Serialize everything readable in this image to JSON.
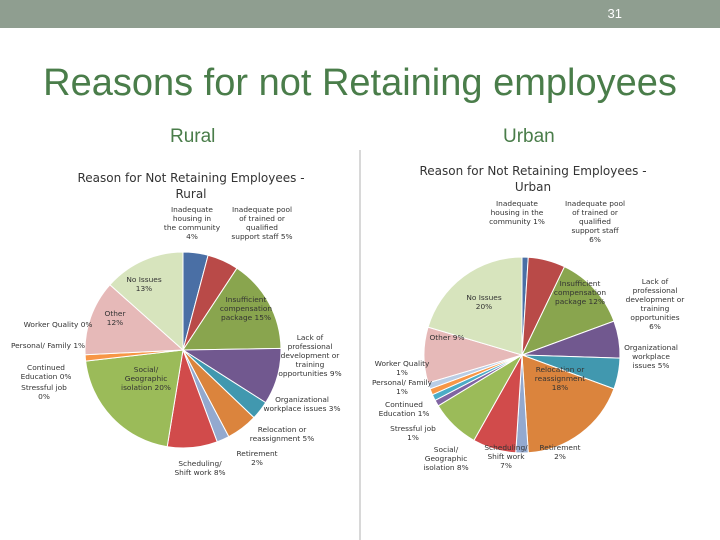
{
  "slide": {
    "page_number": "31",
    "title": "Reasons for not Retaining employees",
    "left_heading": "Rural",
    "right_heading": "Urban"
  },
  "colors": {
    "topbar": "#8f9e90",
    "title": "#4a7d4a"
  },
  "chart_data": [
    {
      "type": "pie",
      "title": "Reason for Not Retaining Employees - Rural",
      "slices": [
        {
          "label": "Inadequate housing in the community",
          "value": 4,
          "display": "Inadequate housing in the community 4%",
          "color": "#4a6fa5"
        },
        {
          "label": "Inadequate pool of trained or qualified support staff",
          "value": 5,
          "display": "Inadequate pool of trained or qualified support staff 5%",
          "color": "#b94a48"
        },
        {
          "label": "Insufficient compensation package",
          "value": 15,
          "display": "Insufficient compensation package 15%",
          "color": "#89a54e"
        },
        {
          "label": "Lack of professional development or training opportunities",
          "value": 9,
          "display": "Lack of professional development or training opportunities 9%",
          "color": "#71588f"
        },
        {
          "label": "Organizational workplace issues",
          "value": 3,
          "display": "Organizational workplace issues 3%",
          "color": "#4198af"
        },
        {
          "label": "Relocation or reassignment",
          "value": 5,
          "display": "Relocation or reassignment 5%",
          "color": "#db843d"
        },
        {
          "label": "Retirement",
          "value": 2,
          "display": "Retirement 2%",
          "color": "#93a9cf"
        },
        {
          "label": "Scheduling/ Shift work",
          "value": 8,
          "display": "Scheduling/ Shift work 8%",
          "color": "#d14b4b"
        },
        {
          "label": "Social/ Geographic isolation",
          "value": 20,
          "display": "Social/ Geographic isolation 20%",
          "color": "#9bbb59"
        },
        {
          "label": "Stressful job",
          "value": 0,
          "display": "Stressful job 0%",
          "color": "#8064a2"
        },
        {
          "label": "Continued Education",
          "value": 0,
          "display": "Continued Education 0%",
          "color": "#4bacc6"
        },
        {
          "label": "Personal/ Family",
          "value": 1,
          "display": "Personal/ Family 1%",
          "color": "#f79646"
        },
        {
          "label": "Worker Quality",
          "value": 0,
          "display": "Worker Quality 0%",
          "color": "#c0504d"
        },
        {
          "label": "Other",
          "value": 12,
          "display": "Other 12%",
          "color": "#e6b9b8"
        },
        {
          "label": "No Issues",
          "value": 13,
          "display": "No Issues 13%",
          "color": "#d7e4bd"
        }
      ]
    },
    {
      "type": "pie",
      "title": "Reason for Not Retaining Employees - Urban",
      "slices": [
        {
          "label": "Inadequate housing in the community",
          "value": 1,
          "display": "Inadequate housing in the community 1%",
          "color": "#4a6fa5"
        },
        {
          "label": "Inadequate pool of trained or qualified support staff",
          "value": 6,
          "display": "Inadequate pool of trained or qualified support staff 6%",
          "color": "#b94a48"
        },
        {
          "label": "Insufficient compensation package",
          "value": 12,
          "display": "Insufficient compensation package 12%",
          "color": "#89a54e"
        },
        {
          "label": "Lack of professional development or training opportunities",
          "value": 6,
          "display": "Lack of professional development or training opportunities 6%",
          "color": "#71588f"
        },
        {
          "label": "Organizational workplace issues",
          "value": 5,
          "display": "Organizational workplace issues 5%",
          "color": "#4198af"
        },
        {
          "label": "Relocation or reassignment",
          "value": 18,
          "display": "Relocation or reassignment 18%",
          "color": "#db843d"
        },
        {
          "label": "Retirement",
          "value": 2,
          "display": "Retirement 2%",
          "color": "#93a9cf"
        },
        {
          "label": "Scheduling/ Shift work",
          "value": 7,
          "display": "Scheduling/ Shift work 7%",
          "color": "#d14b4b"
        },
        {
          "label": "Social/ Geographic isolation",
          "value": 8,
          "display": "Social/ Geographic isolation 8%",
          "color": "#9bbb59"
        },
        {
          "label": "Stressful job",
          "value": 1,
          "display": "Stressful job 1%",
          "color": "#8064a2"
        },
        {
          "label": "Continued Education",
          "value": 1,
          "display": "Continued Education 1%",
          "color": "#4bacc6"
        },
        {
          "label": "Personal/ Family",
          "value": 1,
          "display": "Personal/ Family 1%",
          "color": "#f79646"
        },
        {
          "label": "Worker Quality",
          "value": 1,
          "display": "Worker Quality 1%",
          "color": "#b9cde5"
        },
        {
          "label": "Other",
          "value": 9,
          "display": "Other 9%",
          "color": "#e6b9b8"
        },
        {
          "label": "No Issues",
          "value": 20,
          "display": "No Issues 20%",
          "color": "#d7e4bd"
        }
      ]
    }
  ]
}
